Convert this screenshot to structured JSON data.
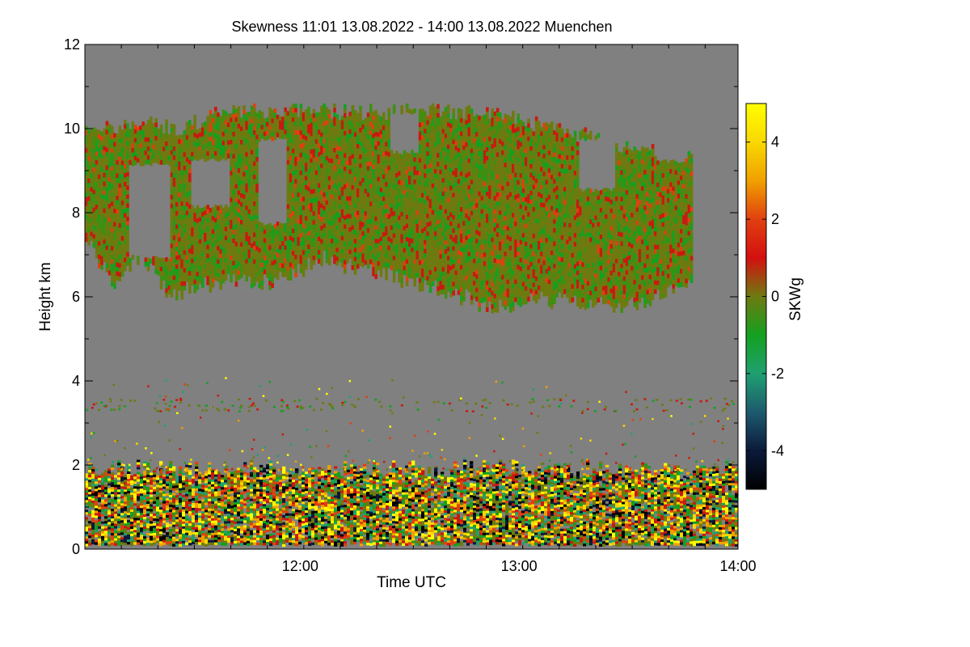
{
  "chart_data": {
    "type": "heatmap",
    "title": "Skewness   11:01 13.08.2022 - 14:00 13.08.2022 Muenchen",
    "xlabel": "Time UTC",
    "ylabel": "Height km",
    "x_range_minutes": [
      661,
      840
    ],
    "xticks": [
      {
        "label": "12:00",
        "value": 720
      },
      {
        "label": "13:00",
        "value": 780
      },
      {
        "label": "14:00",
        "value": 840
      }
    ],
    "y_range": [
      0,
      12
    ],
    "yticks": [
      {
        "label": "0",
        "value": 0
      },
      {
        "label": "2",
        "value": 2
      },
      {
        "label": "4",
        "value": 4
      },
      {
        "label": "6",
        "value": 6
      },
      {
        "label": "8",
        "value": 8
      },
      {
        "label": "10",
        "value": 10
      },
      {
        "label": "12",
        "value": 12
      }
    ],
    "colorbar": {
      "label": "SKWg",
      "range": [
        -5,
        5
      ],
      "ticks": [
        {
          "label": "4",
          "value": 4
        },
        {
          "label": "2",
          "value": 2
        },
        {
          "label": "0",
          "value": 0
        },
        {
          "label": "-2",
          "value": -2
        },
        {
          "label": "-4",
          "value": -4
        }
      ],
      "stops": [
        {
          "value": -5,
          "color": "#000000"
        },
        {
          "value": -4,
          "color": "#0b1a3a"
        },
        {
          "value": -3,
          "color": "#1d5a6e"
        },
        {
          "value": -2,
          "color": "#1fa070"
        },
        {
          "value": -1,
          "color": "#14a020"
        },
        {
          "value": 0,
          "color": "#6e7a10"
        },
        {
          "value": 1,
          "color": "#d41010"
        },
        {
          "value": 2,
          "color": "#e04010"
        },
        {
          "value": 3,
          "color": "#f0a000"
        },
        {
          "value": 4,
          "color": "#f8d800"
        },
        {
          "value": 5,
          "color": "#ffff00"
        }
      ]
    },
    "background_color": "#808080",
    "regions": [
      {
        "name": "cirrus-layer",
        "height_km": [
          5.8,
          10.5
        ],
        "dominant_value_range": [
          -1,
          1
        ]
      },
      {
        "name": "boundary-layer",
        "height_km": [
          0.1,
          2.0
        ],
        "dominant_value_range": [
          -5,
          5
        ]
      },
      {
        "name": "sparse-layer",
        "height_km": [
          3.3,
          3.6
        ],
        "dominant_value_range": [
          -1,
          2
        ]
      }
    ]
  }
}
